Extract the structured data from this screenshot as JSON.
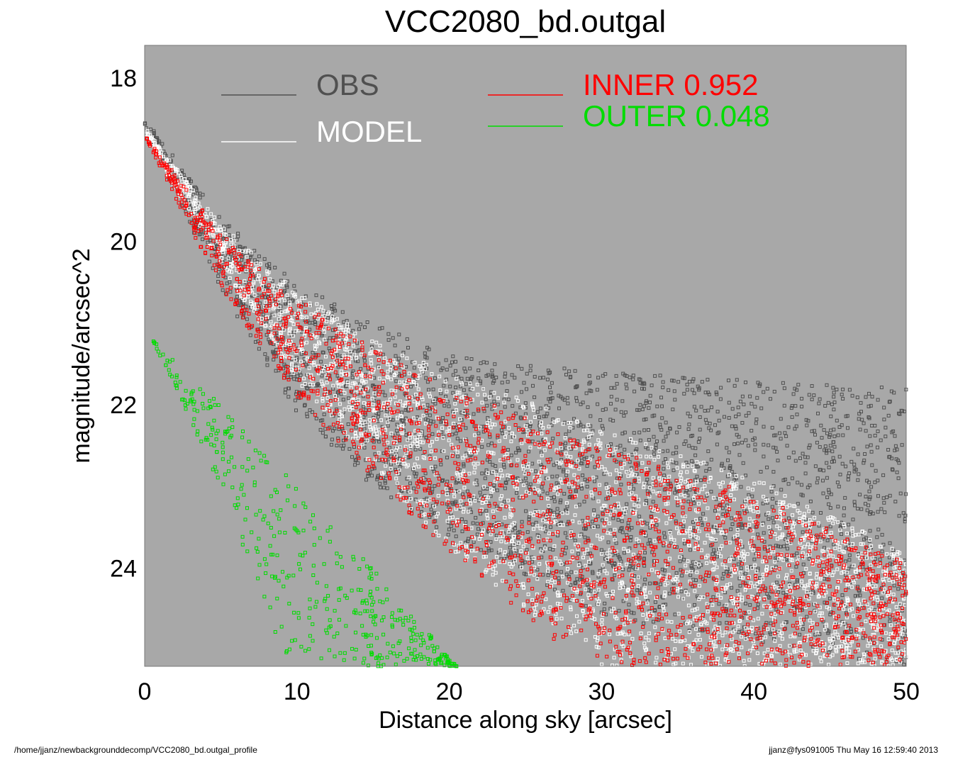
{
  "footer": {
    "left": "/home/jjanz/newbackgrounddecomp/VCC2080_bd.outgal_profile",
    "right": "jjanz@fys091005  Thu May 16 12:59:40 2013"
  },
  "chart_data": {
    "type": "scatter",
    "title": "VCC2080_bd.outgal",
    "xlabel": "Distance along sky [arcsec]",
    "ylabel": "magnitude/arcsec^2",
    "xlim": [
      0,
      50
    ],
    "ylim": [
      25.2,
      17.6
    ],
    "y_inverted": true,
    "x_ticks": [
      "0",
      "10",
      "20",
      "30",
      "40",
      "50"
    ],
    "y_ticks": [
      "18",
      "20",
      "22",
      "24"
    ],
    "plot_background": "#a8a8a8",
    "grid": false,
    "legend": [
      {
        "name": "OBS",
        "label": "OBS",
        "color": "#505050"
      },
      {
        "name": "MODEL",
        "label": "MODEL",
        "color": "#ffffff"
      },
      {
        "name": "INNER",
        "label": "INNER  0.952",
        "color": "#ff0000"
      },
      {
        "name": "OUTER",
        "label": "OUTER  0.048",
        "color": "#00dd00"
      }
    ],
    "series": [
      {
        "name": "OBS",
        "color": "#505050",
        "marker": "square-outline",
        "lower_envelope": {
          "x": [
            0,
            5,
            10,
            15,
            20,
            30,
            50
          ],
          "y": [
            18.6,
            20.6,
            22.1,
            23.0,
            23.6,
            24.6,
            25.2
          ]
        },
        "upper_envelope": {
          "x": [
            0,
            5,
            10,
            15,
            20,
            30,
            40,
            50
          ],
          "y": [
            18.5,
            19.7,
            20.5,
            21.0,
            21.4,
            21.6,
            21.7,
            21.8
          ]
        }
      },
      {
        "name": "MODEL",
        "color": "#ffffff",
        "marker": "square-outline",
        "lower_envelope": {
          "x": [
            0,
            5,
            10,
            20,
            30,
            40,
            50
          ],
          "y": [
            18.7,
            20.3,
            21.7,
            23.8,
            25.2,
            25.2,
            25.2
          ]
        },
        "upper_envelope": {
          "x": [
            0,
            5,
            10,
            15,
            20,
            30,
            40,
            50
          ],
          "y": [
            18.6,
            19.8,
            20.6,
            21.2,
            21.6,
            22.3,
            22.9,
            23.8
          ]
        }
      },
      {
        "name": "INNER",
        "color": "#ff0000",
        "marker": "square-outline",
        "lower_envelope": {
          "x": [
            0,
            5,
            10,
            15,
            20,
            25,
            29.2
          ],
          "y": [
            18.7,
            20.6,
            21.9,
            22.9,
            23.8,
            24.6,
            25.2
          ]
        },
        "upper_envelope": {
          "x": [
            0,
            5,
            10,
            15,
            20,
            30,
            40,
            50
          ],
          "y": [
            18.7,
            19.9,
            20.7,
            21.3,
            21.8,
            22.5,
            23.1,
            23.9
          ]
        }
      },
      {
        "name": "OUTER",
        "color": "#00dd00",
        "marker": "square-outline",
        "lower_envelope": {
          "x": [
            0.5,
            5,
            9.2,
            12
          ],
          "y": [
            21.2,
            23.0,
            25.2,
            25.2
          ]
        },
        "upper_envelope": {
          "x": [
            0.5,
            5,
            10,
            15,
            20.5
          ],
          "y": [
            21.2,
            22.0,
            23.0,
            24.0,
            25.2
          ]
        }
      }
    ]
  }
}
